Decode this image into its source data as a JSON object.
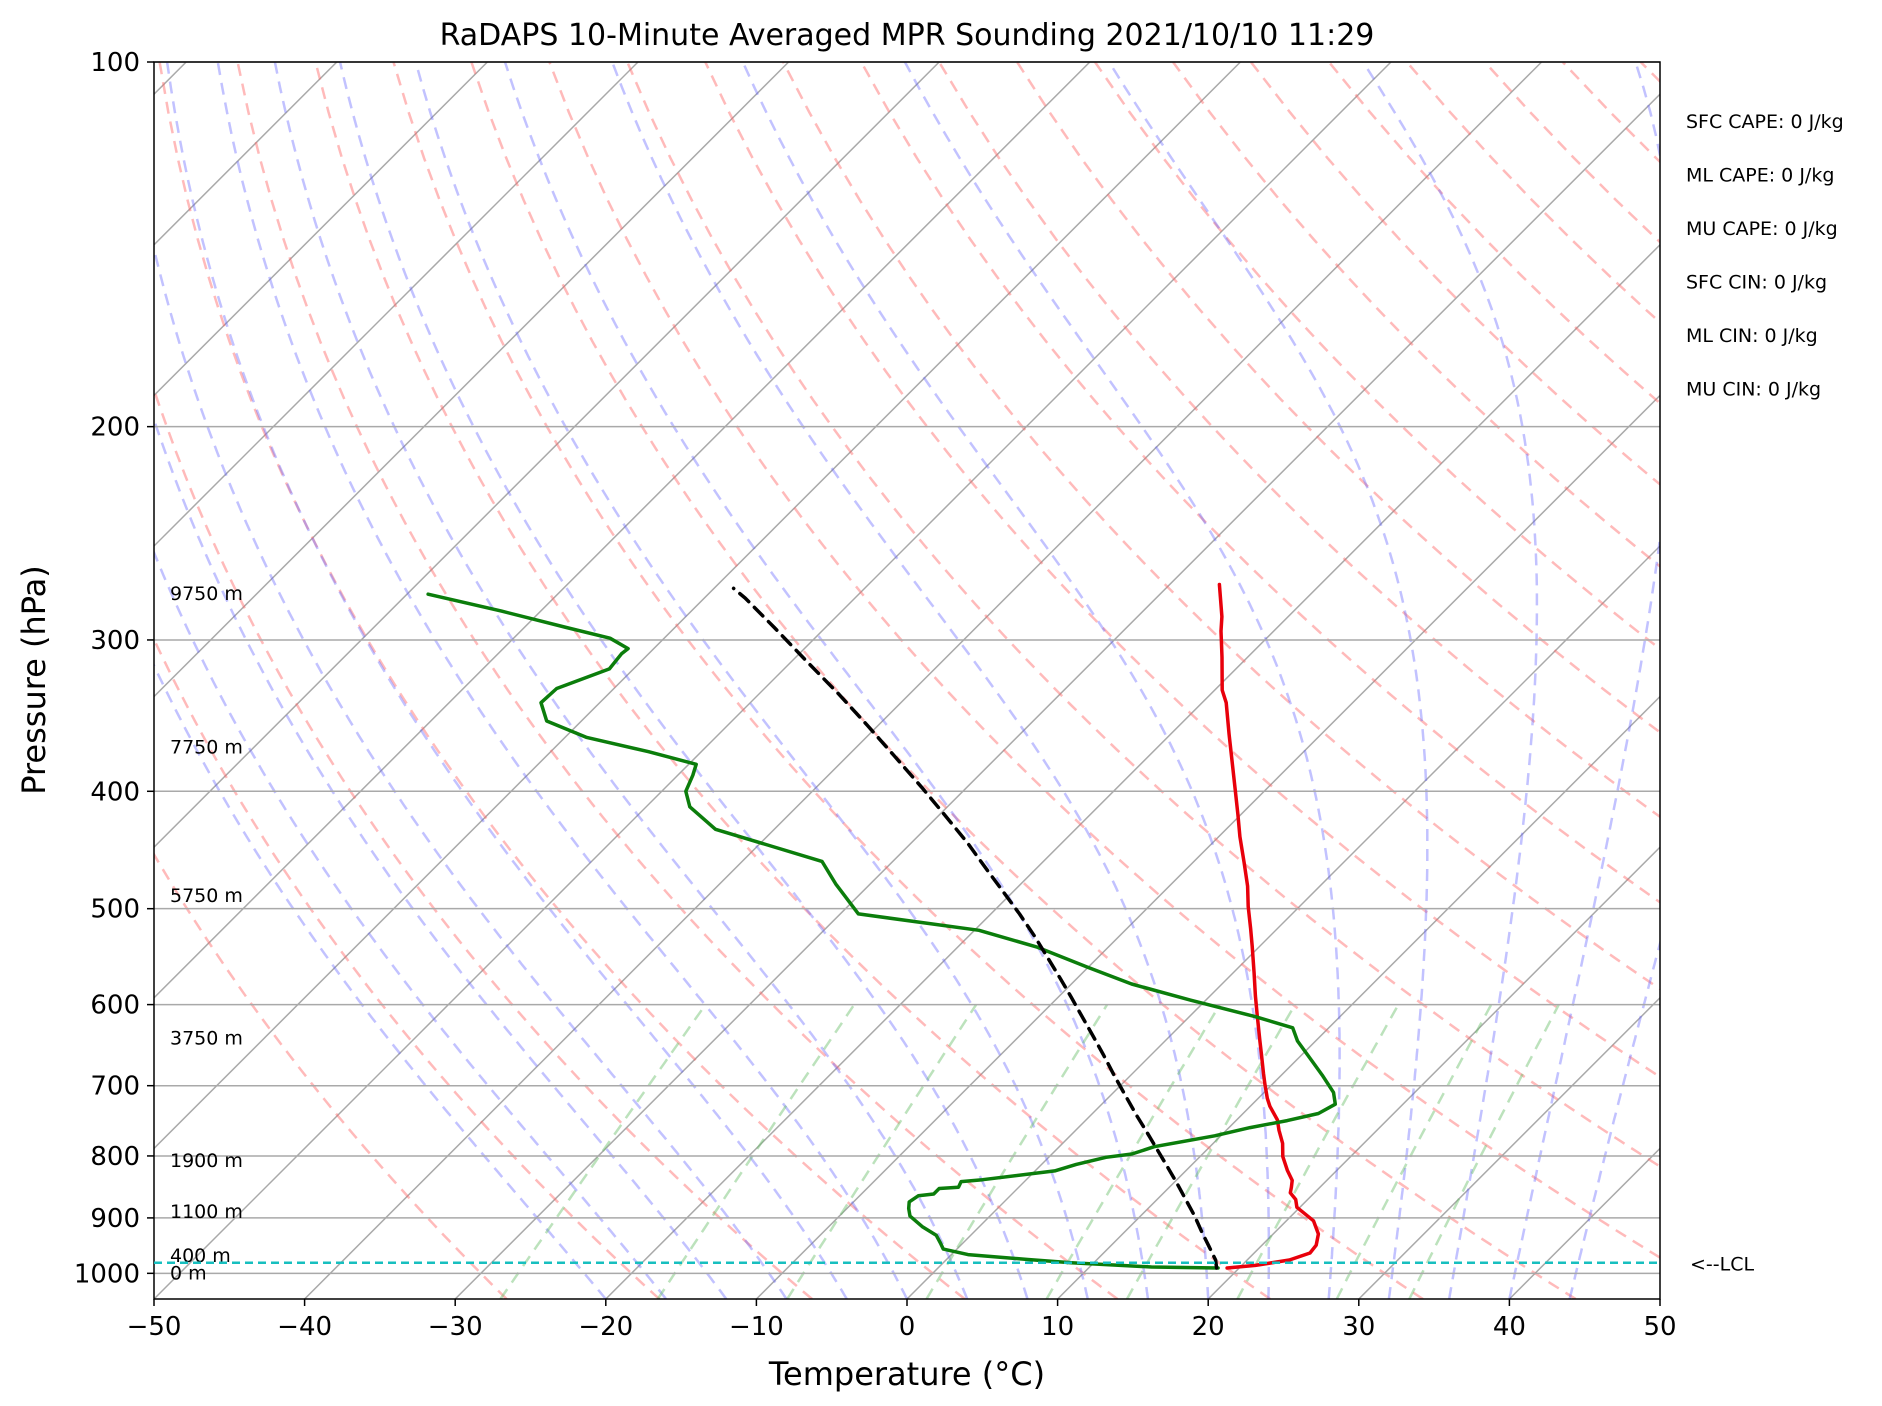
{
  "chart_data": {
    "type": "line",
    "title": "RaDAPS 10-Minute Averaged MPR Sounding 2021/10/10 11:29",
    "xlabel": "Temperature (°C)",
    "ylabel": "Pressure (hPa)",
    "xlim": [
      -50,
      50
    ],
    "ylim": [
      1050,
      100
    ],
    "y_scale": "log",
    "skew": true,
    "x_ticks": [
      -50,
      -40,
      -30,
      -20,
      -10,
      0,
      10,
      20,
      30,
      40,
      50
    ],
    "x_tick_labels": [
      "−50",
      "−40",
      "−30",
      "−20",
      "−10",
      "0",
      "10",
      "20",
      "30",
      "40",
      "50"
    ],
    "y_ticks": [
      100,
      200,
      300,
      400,
      500,
      600,
      700,
      800,
      900,
      1000
    ],
    "y_tick_labels": [
      "100",
      "200",
      "300",
      "400",
      "500",
      "600",
      "700",
      "800",
      "900",
      "1000"
    ],
    "grid": true,
    "series": [
      {
        "role": "temperature",
        "color": "#e8000b",
        "points": [
          [
            19.2,
            990
          ],
          [
            20.9,
            985
          ],
          [
            22.8,
            975
          ],
          [
            23.7,
            962
          ],
          [
            23.6,
            948
          ],
          [
            23.0,
            928
          ],
          [
            21.8,
            905
          ],
          [
            19.8,
            882
          ],
          [
            19.2,
            869
          ],
          [
            18.4,
            858
          ],
          [
            18.1,
            849
          ],
          [
            17.7,
            838
          ],
          [
            16.7,
            822
          ],
          [
            15.5,
            801
          ],
          [
            14.6,
            781
          ],
          [
            13.5,
            762
          ],
          [
            12.7,
            747
          ],
          [
            11.3,
            728
          ],
          [
            10.6,
            717
          ],
          [
            9.5,
            698
          ],
          [
            8.7,
            684
          ],
          [
            7.2,
            658
          ],
          [
            6.3,
            643
          ],
          [
            4.4,
            612
          ],
          [
            3.0,
            590
          ],
          [
            1.4,
            565
          ],
          [
            -0.5,
            537
          ],
          [
            -1.8,
            519
          ],
          [
            -3.4,
            498
          ],
          [
            -4.8,
            479
          ],
          [
            -6.6,
            458
          ],
          [
            -8.6,
            436
          ],
          [
            -10.2,
            418
          ],
          [
            -12.1,
            398
          ],
          [
            -14.1,
            378
          ],
          [
            -16.1,
            359
          ],
          [
            -18.4,
            338
          ],
          [
            -19.5,
            330
          ],
          [
            -21.7,
            310
          ],
          [
            -23.5,
            295
          ],
          [
            -24.4,
            287
          ],
          [
            -25.6,
            278
          ],
          [
            -26.7,
            270
          ]
        ]
      },
      {
        "role": "dewpoint",
        "color": "#0b7d0b",
        "points": [
          [
            18.6,
            990
          ],
          [
            14.1,
            988
          ],
          [
            8.5,
            980
          ],
          [
            5.4,
            974
          ],
          [
            1.1,
            965
          ],
          [
            -0.9,
            955
          ],
          [
            -1.5,
            944
          ],
          [
            -2.3,
            930
          ],
          [
            -3.8,
            915
          ],
          [
            -5.3,
            897
          ],
          [
            -5.9,
            884
          ],
          [
            -6.3,
            873
          ],
          [
            -6.1,
            863
          ],
          [
            -5.2,
            860
          ],
          [
            -5.2,
            851
          ],
          [
            -4.0,
            849
          ],
          [
            -4.2,
            840
          ],
          [
            -2.9,
            837
          ],
          [
            1.3,
            823
          ],
          [
            2.3,
            813
          ],
          [
            3.8,
            802
          ],
          [
            5.3,
            797
          ],
          [
            6.3,
            786
          ],
          [
            9.6,
            770
          ],
          [
            11.4,
            758
          ],
          [
            13.4,
            748
          ],
          [
            15.0,
            738
          ],
          [
            15.5,
            725
          ],
          [
            14.6,
            709
          ],
          [
            12.7,
            686
          ],
          [
            11.1,
            668
          ],
          [
            8.8,
            643
          ],
          [
            7.6,
            627
          ],
          [
            4.4,
            614
          ],
          [
            -1.0,
            595
          ],
          [
            -6.0,
            577
          ],
          [
            -10.0,
            559
          ],
          [
            -14.7,
            538
          ],
          [
            -19.7,
            521
          ],
          [
            -28.8,
            505
          ],
          [
            -32.3,
            477
          ],
          [
            -34.7,
            457
          ],
          [
            -39.4,
            443
          ],
          [
            -43.9,
            430
          ],
          [
            -47.1,
            412
          ],
          [
            -48.4,
            400
          ],
          [
            -49.0,
            388
          ],
          [
            -49.5,
            380
          ],
          [
            -53.5,
            371
          ],
          [
            -58.6,
            361
          ],
          [
            -62.3,
            350
          ],
          [
            -63.9,
            338
          ],
          [
            -63.8,
            329
          ],
          [
            -61.6,
            317
          ],
          [
            -61.8,
            308
          ],
          [
            -61.7,
            305
          ],
          [
            -63.6,
            299
          ],
          [
            -67.2,
            293
          ],
          [
            -72.6,
            284
          ],
          [
            -78.6,
            275
          ]
        ]
      },
      {
        "role": "parcel",
        "color": "#000000",
        "dashed": true,
        "points": [
          [
            18.5,
            990
          ],
          [
            17.9,
            975
          ],
          [
            16.5,
            949
          ],
          [
            15.1,
            924
          ],
          [
            13.6,
            897
          ],
          [
            11.9,
            869
          ],
          [
            10.2,
            842
          ],
          [
            8.4,
            815
          ],
          [
            6.6,
            789
          ],
          [
            4.8,
            764
          ],
          [
            3.0,
            740
          ],
          [
            0.9,
            712
          ],
          [
            -1.2,
            685
          ],
          [
            -3.1,
            661
          ],
          [
            -5.1,
            637
          ],
          [
            -7.2,
            613
          ],
          [
            -9.1,
            592
          ],
          [
            -11.1,
            571
          ],
          [
            -13.3,
            549
          ],
          [
            -15.6,
            527
          ],
          [
            -18.1,
            505
          ],
          [
            -20.8,
            483
          ],
          [
            -23.5,
            462
          ],
          [
            -26.3,
            441
          ],
          [
            -29.7,
            418
          ],
          [
            -33.0,
            397
          ],
          [
            -36.9,
            374
          ],
          [
            -40.7,
            353
          ],
          [
            -44.8,
            332
          ],
          [
            -49.1,
            312
          ],
          [
            -53.4,
            293
          ],
          [
            -57.3,
            277
          ],
          [
            -58.7,
            272
          ]
        ]
      }
    ],
    "lcl": {
      "pressure": 980,
      "label": "<--LCL",
      "color": "#17bfbf"
    },
    "height_labels": [
      {
        "label": "9750 m",
        "pressure": 275
      },
      {
        "label": "7750 m",
        "pressure": 368
      },
      {
        "label": "5750 m",
        "pressure": 488
      },
      {
        "label": "3750 m",
        "pressure": 640
      },
      {
        "label": "1900 m",
        "pressure": 808
      },
      {
        "label": "1100 m",
        "pressure": 890
      },
      {
        "label": "400 m",
        "pressure": 968
      },
      {
        "label": "0 m",
        "pressure": 1000
      }
    ],
    "annotations": [
      "SFC CAPE: 0 J/kg",
      "ML CAPE: 0 J/kg",
      "MU CAPE: 0 J/kg",
      "SFC CIN: 0 J/kg",
      "ML CIN: 0 J/kg",
      "MU CIN: 0 J/kg"
    ],
    "background_lines": {
      "isotherm_color": "#a9a9a9",
      "dry_adiabat_color": "#ff6666",
      "moist_adiabat_color": "#6666ff",
      "mixing_ratio_color": "#6abf6a"
    }
  }
}
